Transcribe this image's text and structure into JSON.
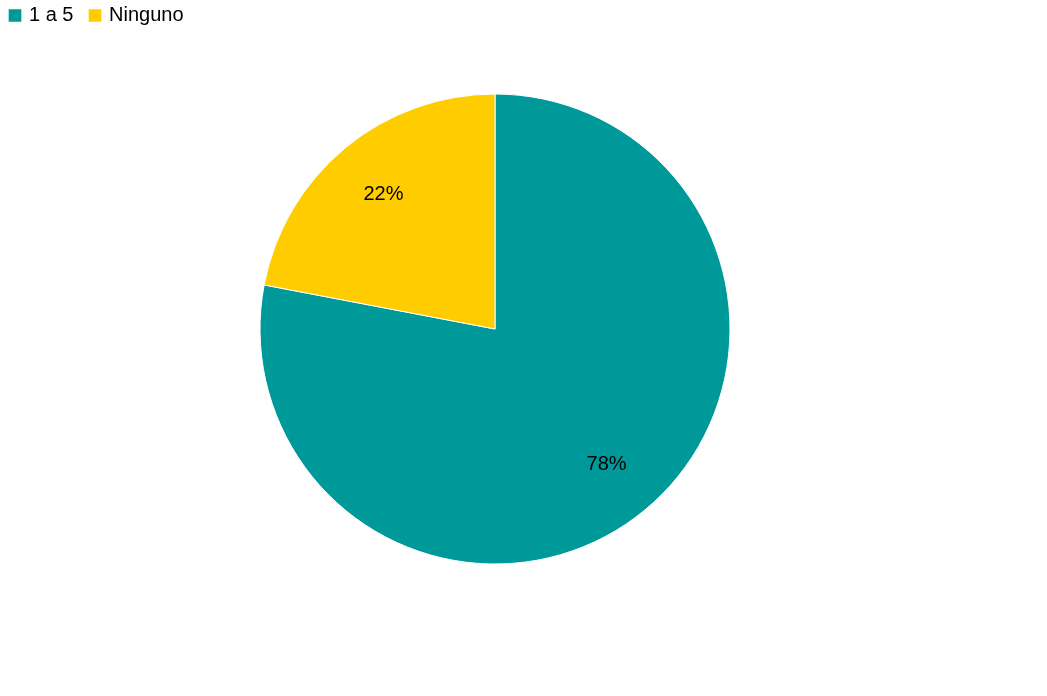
{
  "chart_data": {
    "type": "pie",
    "categories": [
      "1 a 5",
      "Ninguno"
    ],
    "values": [
      78,
      22
    ],
    "colors": [
      "#009999",
      "#ffcc00"
    ],
    "value_labels": [
      "78%",
      "22%"
    ],
    "legend": "top"
  }
}
